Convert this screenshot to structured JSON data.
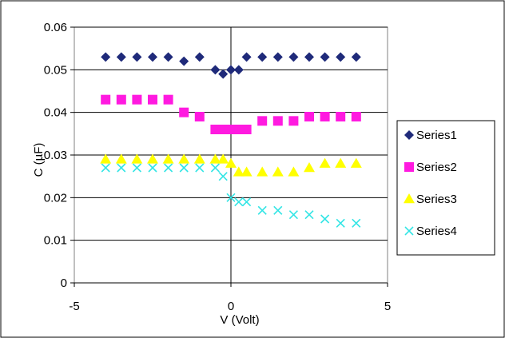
{
  "chart_data": {
    "type": "scatter",
    "title": "",
    "xlabel": "V (Volt)",
    "ylabel": "C (µF)",
    "xlim": [
      -5,
      5
    ],
    "ylim": [
      0,
      0.06
    ],
    "x_ticks": [
      "-5",
      "0",
      "5"
    ],
    "y_ticks": [
      "0",
      "0.01",
      "0.02",
      "0.03",
      "0.04",
      "0.05",
      "0.06"
    ],
    "grid": "horizontal",
    "legend_position": "right",
    "series": [
      {
        "name": "Series1",
        "marker": "diamond",
        "color": "#1f2a7a",
        "x": [
          -4,
          -3.5,
          -3,
          -2.5,
          -2,
          -1.5,
          -1,
          -0.5,
          -0.25,
          0,
          0.25,
          0.5,
          1,
          1.5,
          2,
          2.5,
          3,
          3.5,
          4
        ],
        "y": [
          0.053,
          0.053,
          0.053,
          0.053,
          0.053,
          0.052,
          0.053,
          0.05,
          0.049,
          0.05,
          0.05,
          0.053,
          0.053,
          0.053,
          0.053,
          0.053,
          0.053,
          0.053,
          0.053
        ]
      },
      {
        "name": "Series2",
        "marker": "square",
        "color": "#ff1ae0",
        "x": [
          -4,
          -3.5,
          -3,
          -2.5,
          -2,
          -1.5,
          -1,
          -0.5,
          -0.25,
          0,
          0.25,
          0.5,
          1,
          1.5,
          2,
          2.5,
          3,
          3.5,
          4
        ],
        "y": [
          0.043,
          0.043,
          0.043,
          0.043,
          0.043,
          0.04,
          0.039,
          0.036,
          0.036,
          0.036,
          0.036,
          0.036,
          0.038,
          0.038,
          0.038,
          0.039,
          0.039,
          0.039,
          0.039
        ]
      },
      {
        "name": "Series3",
        "marker": "triangle",
        "color": "#ffff00",
        "x": [
          -4,
          -3.5,
          -3,
          -2.5,
          -2,
          -1.5,
          -1,
          -0.5,
          -0.25,
          0,
          0.25,
          0.5,
          1,
          1.5,
          2,
          2.5,
          3,
          3.5,
          4
        ],
        "y": [
          0.029,
          0.029,
          0.029,
          0.029,
          0.029,
          0.029,
          0.029,
          0.029,
          0.029,
          0.028,
          0.026,
          0.026,
          0.026,
          0.026,
          0.026,
          0.027,
          0.028,
          0.028,
          0.028
        ]
      },
      {
        "name": "Series4",
        "marker": "x",
        "color": "#33e5e5",
        "x": [
          -4,
          -3.5,
          -3,
          -2.5,
          -2,
          -1.5,
          -1,
          -0.5,
          -0.25,
          0,
          0.25,
          0.5,
          1,
          1.5,
          2,
          2.5,
          3,
          3.5,
          4
        ],
        "y": [
          0.027,
          0.027,
          0.027,
          0.027,
          0.027,
          0.027,
          0.027,
          0.027,
          0.025,
          0.02,
          0.019,
          0.019,
          0.017,
          0.017,
          0.016,
          0.016,
          0.015,
          0.014,
          0.014
        ]
      }
    ]
  }
}
